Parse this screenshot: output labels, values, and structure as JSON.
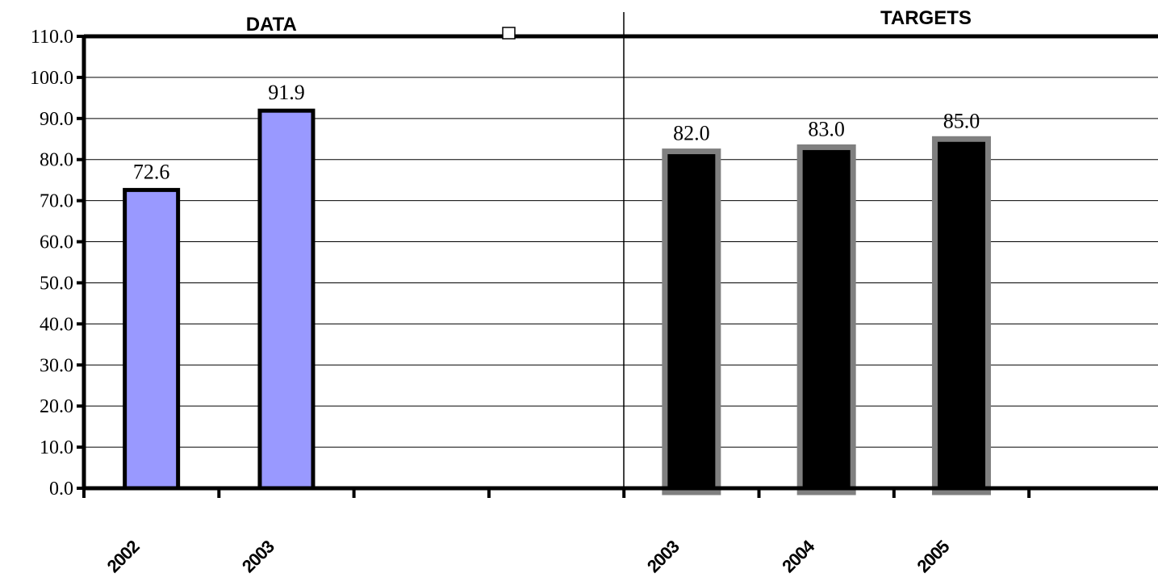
{
  "chart_data": {
    "type": "bar",
    "ylim": [
      0,
      110
    ],
    "ytick_step": 10,
    "ytick_labels": [
      "0.0",
      "10.0",
      "20.0",
      "30.0",
      "40.0",
      "50.0",
      "60.0",
      "70.0",
      "80.0",
      "90.0",
      "100.0",
      "110.0"
    ],
    "grid": true,
    "sections": [
      {
        "title": "DATA",
        "title_slot": 2
      },
      {
        "title": "TARGETS",
        "title_slot": 6
      }
    ],
    "bars": [
      {
        "category": "2002",
        "slot": 0,
        "value": 72.6,
        "label": "72.6",
        "group": "data"
      },
      {
        "category": "2003",
        "slot": 1,
        "value": 91.9,
        "label": "91.9",
        "group": "data"
      },
      {
        "category": "2003",
        "slot": 4,
        "value": 82.0,
        "label": "82.0",
        "group": "target"
      },
      {
        "category": "2004",
        "slot": 5,
        "value": 83.0,
        "label": "83.0",
        "group": "target"
      },
      {
        "category": "2005",
        "slot": 6,
        "value": 85.0,
        "label": "85.0",
        "group": "target"
      }
    ],
    "colors": {
      "data_fill": "#9999ff",
      "data_stroke": "#000000",
      "target_fill": "#000000",
      "target_stroke": "#808080",
      "axis": "#000000",
      "grid": "#000000"
    }
  }
}
